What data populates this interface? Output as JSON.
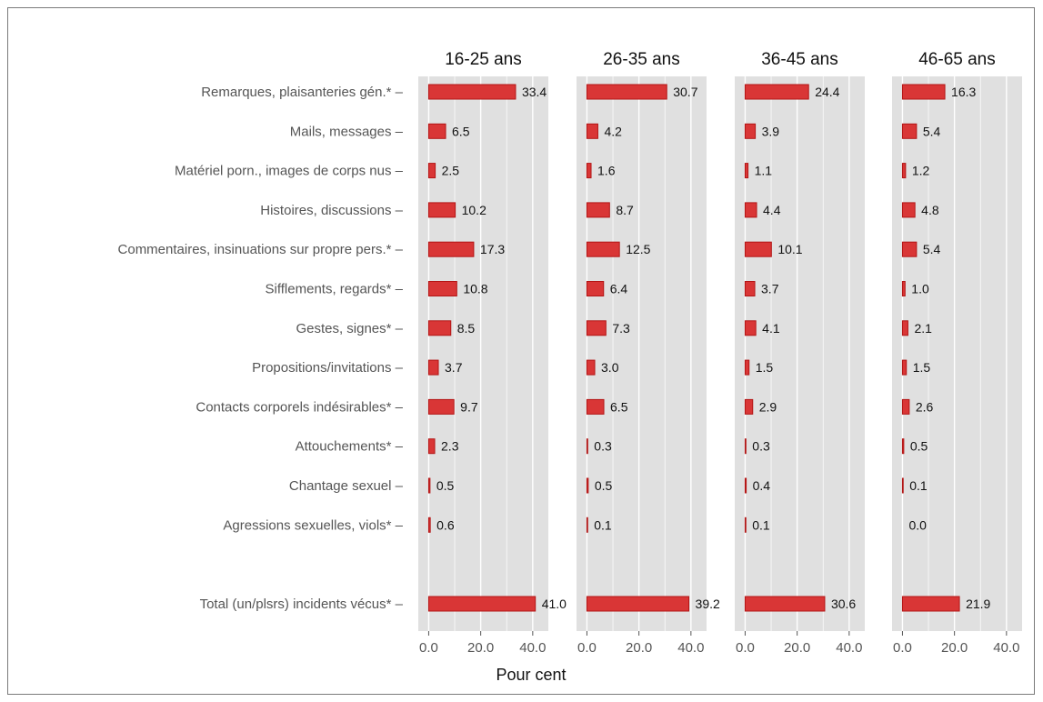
{
  "chart_data": {
    "type": "bar",
    "orientation": "horizontal",
    "facets": [
      "16-25 ans",
      "26-35 ans",
      "36-45 ans",
      "46-65 ans"
    ],
    "categories": [
      "Remarques, plaisanteries gén.*",
      "Mails, messages",
      "Matériel porn., images de corps nus",
      "Histoires, discussions",
      "Commentaires, insinuations sur propre pers.*",
      "Sifflements, regards*",
      "Gestes, signes*",
      "Propositions/invitations",
      "Contacts corporels indésirables*",
      "Attouchements*",
      "Chantage sexuel",
      "Agressions sexuelles, viols*",
      "Total (un/plsrs) incidents vécus*"
    ],
    "series": [
      {
        "values": [
          33.4,
          6.5,
          2.5,
          10.2,
          17.3,
          10.8,
          8.5,
          3.7,
          9.7,
          2.3,
          0.5,
          0.6,
          41.0
        ]
      },
      {
        "values": [
          30.7,
          4.2,
          1.6,
          8.7,
          12.5,
          6.4,
          7.3,
          3.0,
          6.5,
          0.3,
          0.5,
          0.1,
          39.2
        ]
      },
      {
        "values": [
          24.4,
          3.9,
          1.1,
          4.4,
          10.1,
          3.7,
          4.1,
          1.5,
          2.9,
          0.3,
          0.4,
          0.1,
          30.6
        ]
      },
      {
        "values": [
          16.3,
          5.4,
          1.2,
          4.8,
          5.4,
          1.0,
          2.1,
          1.5,
          2.6,
          0.5,
          0.1,
          0.0,
          21.9
        ]
      }
    ],
    "xlabel": "Pour cent",
    "ylabel": "",
    "xlim": [
      -4,
      46
    ],
    "xticks": [
      "0.0",
      "20.0",
      "40.0"
    ],
    "xtick_values": [
      0,
      20,
      40
    ],
    "grid": true,
    "bar_color": "#d93636",
    "bar_edge_color": "#b31515",
    "panel_background": "#e0e0e0",
    "grid_color": "#ffffff"
  }
}
